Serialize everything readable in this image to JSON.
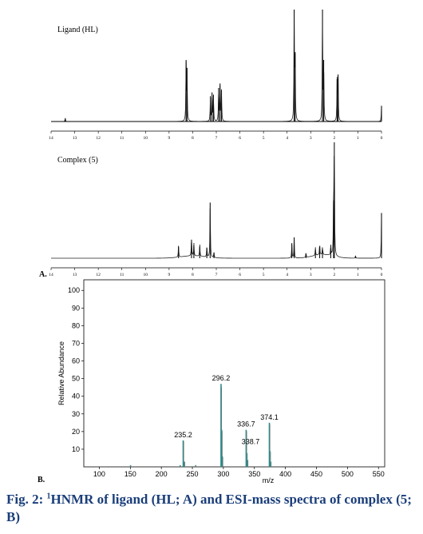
{
  "panel_a_label": "A.",
  "panel_b_label": "B.",
  "caption": {
    "fig": "Fig. 2:",
    "sup": "1",
    "text": "HNMR of ligand (HL; A) and ESI-mass spectra of complex (5; B)"
  },
  "chart_data": [
    {
      "type": "line",
      "title": "Ligand (HL)",
      "xlabel": "",
      "ylabel": "",
      "xlim": [
        14,
        0
      ],
      "x_ticks": [
        "14",
        "13",
        "12",
        "11",
        "10",
        "9",
        "8",
        "7",
        "6",
        "5",
        "4",
        "3",
        "2",
        "1",
        "0"
      ],
      "peaks": [
        {
          "ppm": 13.4,
          "h": 0.03
        },
        {
          "ppm": 8.28,
          "h": 0.55
        },
        {
          "ppm": 8.24,
          "h": 0.48
        },
        {
          "ppm": 7.25,
          "h": 0.22
        },
        {
          "ppm": 7.18,
          "h": 0.26
        },
        {
          "ppm": 7.12,
          "h": 0.24
        },
        {
          "ppm": 6.9,
          "h": 0.3
        },
        {
          "ppm": 6.84,
          "h": 0.34
        },
        {
          "ppm": 6.78,
          "h": 0.28
        },
        {
          "ppm": 3.7,
          "h": 1.0
        },
        {
          "ppm": 3.66,
          "h": 0.62
        },
        {
          "ppm": 2.5,
          "h": 1.0
        },
        {
          "ppm": 2.45,
          "h": 0.55
        },
        {
          "ppm": 1.88,
          "h": 0.38
        },
        {
          "ppm": 1.84,
          "h": 0.42
        },
        {
          "ppm": 0.0,
          "h": 0.14
        }
      ],
      "grid": false
    },
    {
      "type": "line",
      "title": "Complex (5)",
      "xlabel": "",
      "ylabel": "",
      "xlim": [
        14,
        0
      ],
      "x_ticks": [
        "14",
        "13",
        "12",
        "11",
        "10",
        "9",
        "8",
        "7",
        "6",
        "5",
        "4",
        "3",
        "2",
        "1",
        "0"
      ],
      "peaks": [
        {
          "ppm": 8.6,
          "h": 0.1
        },
        {
          "ppm": 8.05,
          "h": 0.16
        },
        {
          "ppm": 7.95,
          "h": 0.11
        },
        {
          "ppm": 7.7,
          "h": 0.1
        },
        {
          "ppm": 7.4,
          "h": 0.09
        },
        {
          "ppm": 7.26,
          "h": 0.48
        },
        {
          "ppm": 7.1,
          "h": 0.05
        },
        {
          "ppm": 3.8,
          "h": 0.13
        },
        {
          "ppm": 3.7,
          "h": 0.18
        },
        {
          "ppm": 3.2,
          "h": 0.04
        },
        {
          "ppm": 2.8,
          "h": 0.07
        },
        {
          "ppm": 2.62,
          "h": 0.1
        },
        {
          "ppm": 2.5,
          "h": 0.07
        },
        {
          "ppm": 2.15,
          "h": 0.09
        },
        {
          "ppm": 2.03,
          "h": 0.5
        },
        {
          "ppm": 2.0,
          "h": 1.0
        },
        {
          "ppm": 1.1,
          "h": 0.02
        },
        {
          "ppm": 0.0,
          "h": 0.39
        }
      ],
      "grid": false
    },
    {
      "type": "bar",
      "title": "",
      "xlabel": "m/z",
      "ylabel": "Relative Abundance",
      "xlim": [
        75,
        560
      ],
      "ylim": [
        0,
        100
      ],
      "x_ticks": [
        100,
        150,
        200,
        250,
        300,
        350,
        400,
        450,
        500,
        550
      ],
      "y_ticks": [
        10,
        20,
        30,
        40,
        50,
        60,
        70,
        80,
        90,
        100
      ],
      "peaks": [
        {
          "mz": 235.2,
          "abundance": 15,
          "label": "235.2"
        },
        {
          "mz": 237.0,
          "abundance": 3
        },
        {
          "mz": 296.2,
          "abundance": 47,
          "label": "296.2"
        },
        {
          "mz": 297.2,
          "abundance": 21
        },
        {
          "mz": 298.2,
          "abundance": 6
        },
        {
          "mz": 336.7,
          "abundance": 21,
          "label": "336.7"
        },
        {
          "mz": 337.7,
          "abundance": 8
        },
        {
          "mz": 338.7,
          "abundance": 4,
          "label": "338.7"
        },
        {
          "mz": 374.1,
          "abundance": 25,
          "label": "374.1"
        },
        {
          "mz": 375.1,
          "abundance": 9
        },
        {
          "mz": 376.1,
          "abundance": 3
        },
        {
          "mz": 150.0,
          "abundance": 1
        },
        {
          "mz": 230.0,
          "abundance": 1
        },
        {
          "mz": 255.0,
          "abundance": 1
        }
      ],
      "grid": false
    }
  ]
}
